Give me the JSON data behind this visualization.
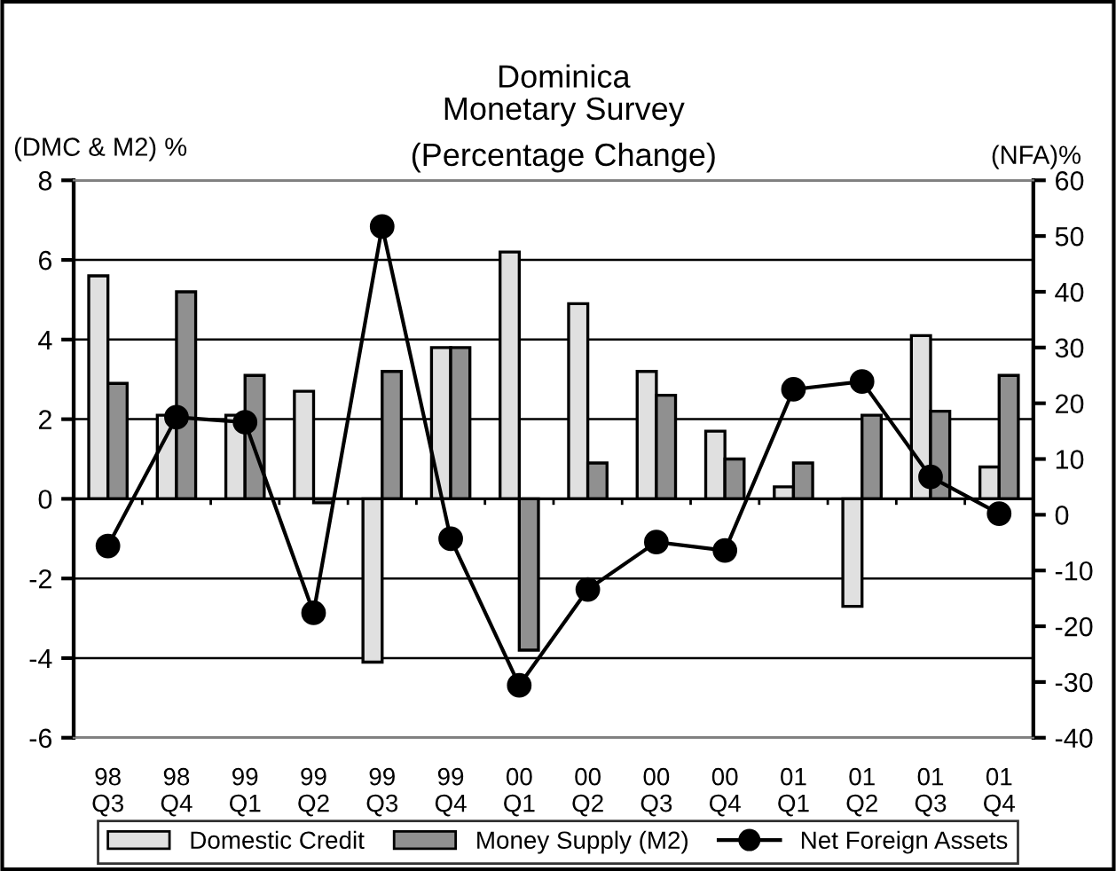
{
  "chart_data": {
    "type": "bar",
    "title": "Dominica\nMonetary Survey",
    "subtitle": "(Percentage Change)",
    "ylabel": "(DMC & M2) %",
    "y2label": "(NFA)%",
    "categories": [
      "98\nQ3",
      "98\nQ4",
      "99\nQ1",
      "99\nQ2",
      "99\nQ3",
      "99\nQ4",
      "00\nQ1",
      "00\nQ2",
      "00\nQ3",
      "00\nQ4",
      "01\nQ1",
      "01\nQ2",
      "01\nQ3",
      "01\nQ4"
    ],
    "series": [
      {
        "name": "Domestic Credit",
        "color": "#e0e0e0",
        "values": [
          5.6,
          2.1,
          2.1,
          2.7,
          -4.1,
          3.8,
          6.2,
          4.9,
          3.2,
          1.7,
          0.3,
          -2.7,
          4.1,
          0.8
        ]
      },
      {
        "name": "Money Supply (M2)",
        "color": "#909090",
        "values": [
          2.9,
          5.2,
          3.1,
          -0.1,
          3.2,
          3.8,
          -3.8,
          0.9,
          2.6,
          1.0,
          0.9,
          2.1,
          2.2,
          3.1
        ]
      },
      {
        "name": "Net Foreign Assets",
        "type": "line",
        "axis": "y2",
        "color": "#000000",
        "marker": "circle",
        "values": [
          -5.6,
          17.5,
          16.6,
          -17.6,
          51.7,
          -4.3,
          -30.6,
          -13.4,
          -4.9,
          -6.4,
          22.5,
          23.9,
          6.8,
          0.2
        ]
      }
    ],
    "ylim": [
      -6,
      8
    ],
    "yticks": [
      -6,
      -4,
      -2,
      0,
      2,
      4,
      6,
      8
    ],
    "y2lim": [
      -40,
      60
    ],
    "y2ticks": [
      -40,
      -30,
      -20,
      -10,
      0,
      10,
      20,
      30,
      40,
      50,
      60
    ],
    "grid": "y",
    "legend": "bottom"
  }
}
